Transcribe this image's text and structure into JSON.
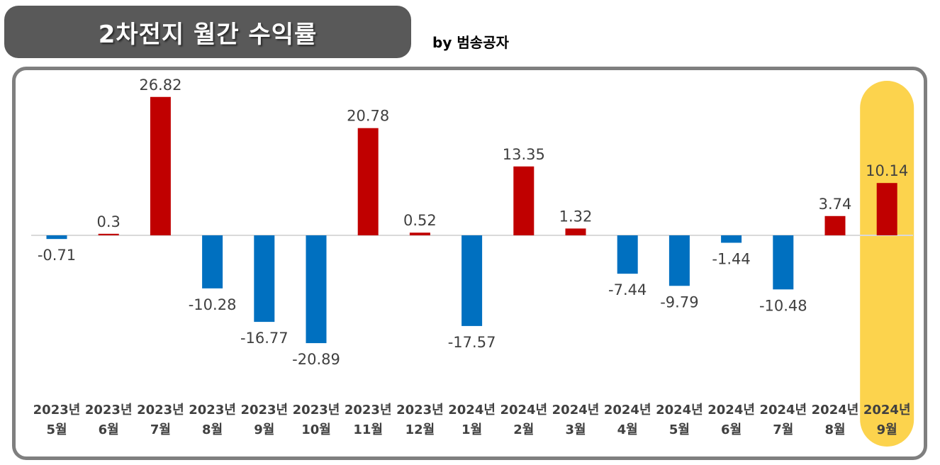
{
  "header": {
    "title": "2차전지 월간 수익률",
    "byline": "by 범송공자"
  },
  "colors": {
    "positive": "#c00000",
    "negative": "#0070c0",
    "highlight": "#fcd34d",
    "title_bg": "#595959",
    "frame": "#7f7f7f",
    "label": "#404040"
  },
  "chart_data": {
    "type": "bar",
    "categories": [
      [
        "2023년",
        "5월"
      ],
      [
        "2023년",
        "6월"
      ],
      [
        "2023년",
        "7월"
      ],
      [
        "2023년",
        "8월"
      ],
      [
        "2023년",
        "9월"
      ],
      [
        "2023년",
        "10월"
      ],
      [
        "2023년",
        "11월"
      ],
      [
        "2023년",
        "12월"
      ],
      [
        "2024년",
        "1월"
      ],
      [
        "2024년",
        "2월"
      ],
      [
        "2024년",
        "3월"
      ],
      [
        "2024년",
        "4월"
      ],
      [
        "2024년",
        "5월"
      ],
      [
        "2024년",
        "6월"
      ],
      [
        "2024년",
        "7월"
      ],
      [
        "2024년",
        "8월"
      ],
      [
        "2024년",
        "9월"
      ]
    ],
    "values": [
      -0.71,
      0.3,
      26.82,
      -10.28,
      -16.77,
      -20.89,
      20.78,
      0.52,
      -17.57,
      13.35,
      1.32,
      -7.44,
      -9.79,
      -1.44,
      -10.48,
      3.74,
      10.14
    ],
    "value_labels": [
      "-0.71",
      "0.3",
      "26.82",
      "-10.28",
      "-16.77",
      "-20.89",
      "20.78",
      "0.52",
      "-17.57",
      "13.35",
      "1.32",
      "-7.44",
      "-9.79",
      "-1.44",
      "-10.48",
      "3.74",
      "10.14"
    ],
    "highlight_index": 16,
    "title": "2차전지 월간 수익률",
    "xlabel": "",
    "ylabel": "",
    "ylim": [
      -27,
      27
    ],
    "grid": false,
    "legend": "none"
  }
}
